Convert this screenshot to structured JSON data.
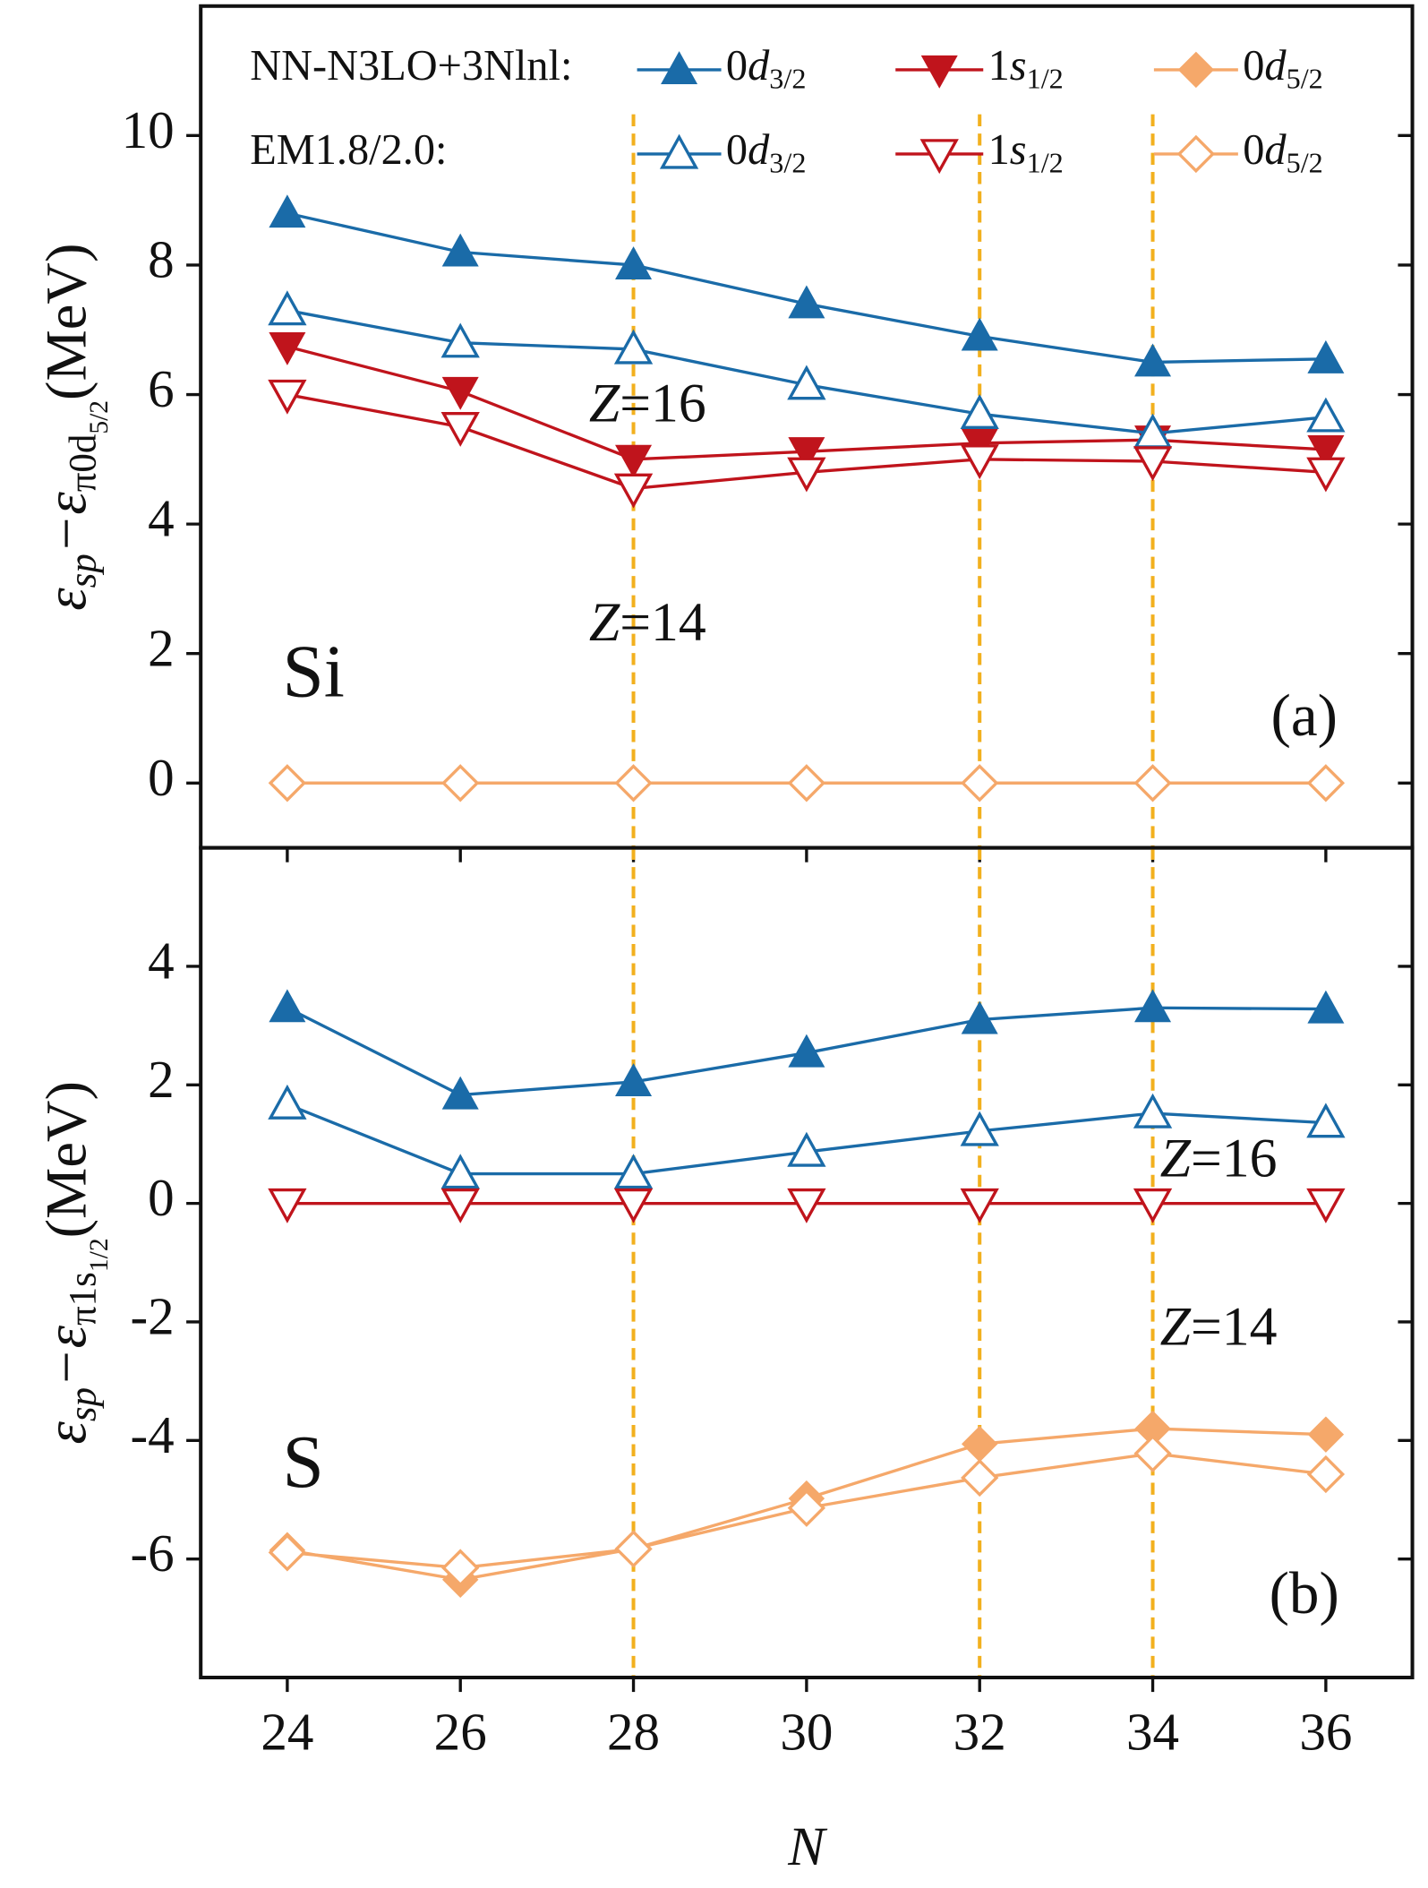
{
  "chart_data": [
    {
      "type": "line",
      "ylabel_parts": [
        {
          "text": "ε"
        },
        {
          "text": "sp",
          "sub": 1
        },
        {
          "text": "−ε"
        },
        {
          "text": "π0d",
          "sub": 1
        },
        {
          "text": "5/2",
          "sub": 2
        },
        {
          "text": "(MeV)"
        }
      ],
      "legend_groups": [
        "NN-N3LO+3Nlnl:",
        "EM1.8/2.0:"
      ],
      "panel_label": "(a)",
      "element": "Si",
      "annotations": [
        "Z=16",
        "Z=14"
      ],
      "x": [
        24,
        26,
        28,
        30,
        32,
        34,
        36
      ],
      "xlim": [
        23,
        37
      ],
      "xticks": [
        24,
        26,
        28,
        30,
        32,
        34,
        36
      ],
      "ylim": [
        -1,
        12
      ],
      "yticks": [
        0,
        2,
        4,
        6,
        8,
        10
      ],
      "vlines": [
        28,
        32,
        34
      ],
      "vline_color": "#f2b01e",
      "series": [
        {
          "name": "0d3/2",
          "color": "#1a6ba8",
          "marker": "triangle-up",
          "filled": true,
          "values": [
            8.8,
            8.2,
            8.0,
            7.4,
            6.9,
            6.5,
            6.55
          ]
        },
        {
          "name": "1s1/2",
          "color": "#c0141c",
          "marker": "triangle-down",
          "filled": true,
          "values": [
            6.74,
            6.05,
            5.0,
            5.12,
            5.25,
            5.3,
            5.15
          ]
        },
        {
          "name": "0d5/2",
          "color": "#f5a86a",
          "marker": "diamond",
          "filled": true,
          "values": [
            0,
            0,
            0,
            0,
            0,
            0,
            0
          ]
        },
        {
          "name": "0d3/2",
          "color": "#1a6ba8",
          "marker": "triangle-up",
          "filled": false,
          "values": [
            7.3,
            6.8,
            6.7,
            6.15,
            5.7,
            5.4,
            5.65
          ]
        },
        {
          "name": "1s1/2",
          "color": "#c0141c",
          "marker": "triangle-down",
          "filled": false,
          "values": [
            6.0,
            5.5,
            4.55,
            4.8,
            5.0,
            4.97,
            4.8
          ]
        },
        {
          "name": "0d5/2",
          "color": "#f5a86a",
          "marker": "diamond",
          "filled": false,
          "values": [
            0,
            0,
            0,
            0,
            0,
            0,
            0
          ]
        }
      ]
    },
    {
      "type": "line",
      "ylabel_parts": [
        {
          "text": "ε"
        },
        {
          "text": "sp",
          "sub": 1
        },
        {
          "text": "−ε"
        },
        {
          "text": "π1s",
          "sub": 1
        },
        {
          "text": "1/2",
          "sub": 2
        },
        {
          "text": "(MeV)"
        }
      ],
      "xlabel": "N",
      "panel_label": "(b)",
      "element": "S",
      "annotations": [
        "Z=16",
        "Z=14"
      ],
      "x": [
        24,
        26,
        28,
        30,
        32,
        34,
        36
      ],
      "xlim": [
        23,
        37
      ],
      "xticks": [
        24,
        26,
        28,
        30,
        32,
        34,
        36
      ],
      "ylim": [
        -8,
        6
      ],
      "yticks": [
        -6,
        -4,
        -2,
        0,
        2,
        4
      ],
      "vlines": [
        28,
        32,
        34
      ],
      "vline_color": "#f2b01e",
      "series": [
        {
          "color": "#1a6ba8",
          "marker": "triangle-up",
          "filled": true,
          "values": [
            3.3,
            1.83,
            2.05,
            2.54,
            3.1,
            3.3,
            3.28
          ]
        },
        {
          "color": "#c0141c",
          "marker": "triangle-down",
          "filled": true,
          "values": [
            0,
            0,
            0,
            0,
            0,
            0,
            0
          ]
        },
        {
          "color": "#f5a86a",
          "marker": "diamond",
          "filled": true,
          "values": [
            -5.85,
            -6.35,
            -5.83,
            -4.98,
            -4.06,
            -3.8,
            -3.9
          ]
        },
        {
          "color": "#1a6ba8",
          "marker": "triangle-up",
          "filled": false,
          "values": [
            1.67,
            0.5,
            0.5,
            0.87,
            1.22,
            1.52,
            1.36
          ]
        },
        {
          "color": "#c0141c",
          "marker": "triangle-down",
          "filled": false,
          "values": [
            0,
            0,
            0,
            0,
            0,
            0,
            0
          ]
        },
        {
          "color": "#f5a86a",
          "marker": "diamond",
          "filled": false,
          "values": [
            -5.89,
            -6.15,
            -5.83,
            -5.14,
            -4.63,
            -4.22,
            -4.57
          ]
        }
      ]
    }
  ]
}
